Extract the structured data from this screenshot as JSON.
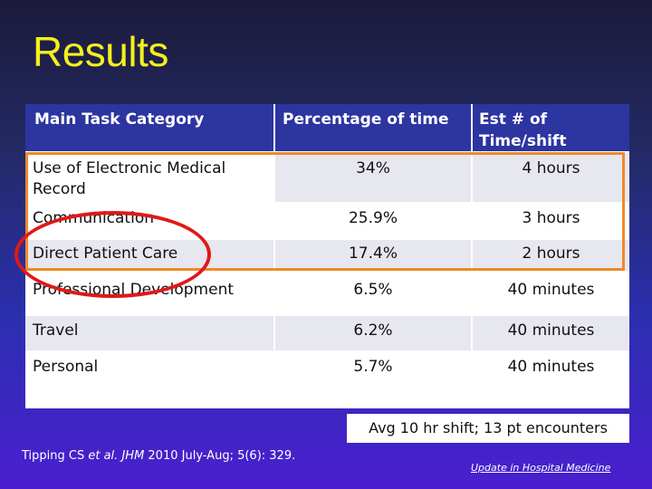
{
  "slide": {
    "title": "Results",
    "table": {
      "headers": [
        "Main Task Category",
        "Percentage of time",
        "Est # of Time/shift"
      ],
      "rows": [
        [
          "Use of Electronic Medical Record",
          "34%",
          "4 hours"
        ],
        [
          "Communication",
          "25.9%",
          "3 hours"
        ],
        [
          "Direct Patient Care",
          "17.4%",
          "2 hours"
        ],
        [
          "Professional Development",
          "6.5%",
          "40 minutes"
        ],
        [
          "Travel",
          "6.2%",
          "40 minutes"
        ],
        [
          "Personal",
          "5.7%",
          "40 minutes"
        ]
      ]
    },
    "note": "Avg 10 hr shift; 13 pt encounters",
    "citation": {
      "authors": "Tipping CS ",
      "etal": "et al.",
      "journal": "JHM",
      "details": " 2010 July-Aug; 5(6): 329."
    },
    "logo_text": "Update in Hospital Medicine",
    "colors": {
      "background": "#2b2fb0",
      "title": "#f4f01c",
      "header": "#2c35a0",
      "highlight_box": "#ee8a2a",
      "oval": "#e01818"
    }
  }
}
